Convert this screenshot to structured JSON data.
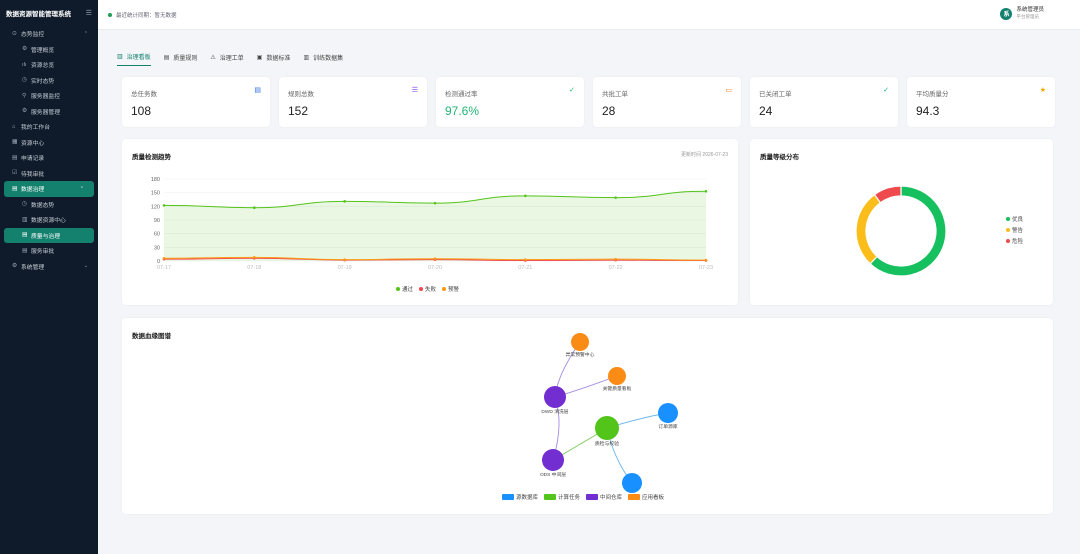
{
  "app": {
    "title": "数据资源智能管理系统"
  },
  "sidebar": {
    "items": [
      {
        "label": "态势监控",
        "icon": "monitor-icon",
        "type": "group",
        "caret": "⌃"
      },
      {
        "label": "管理概览",
        "icon": "gear-icon",
        "type": "sub"
      },
      {
        "label": "资源总览",
        "icon": "chart-icon",
        "type": "sub"
      },
      {
        "label": "实时态势",
        "icon": "clock-icon",
        "type": "sub"
      },
      {
        "label": "服务器监控",
        "icon": "key-icon",
        "type": "sub"
      },
      {
        "label": "服务器管理",
        "icon": "cog-icon",
        "type": "sub"
      },
      {
        "label": "我的工作台",
        "icon": "home-icon",
        "type": "top"
      },
      {
        "label": "资源中心",
        "icon": "grid-icon",
        "type": "top"
      },
      {
        "label": "申请记录",
        "icon": "doc-icon",
        "type": "top"
      },
      {
        "label": "待我审批",
        "icon": "check-icon",
        "type": "top"
      },
      {
        "label": "数据治理",
        "icon": "data-icon",
        "type": "group-active",
        "caret": "⌃"
      },
      {
        "label": "数据态势",
        "icon": "clock-icon",
        "type": "sub"
      },
      {
        "label": "数据资源中心",
        "icon": "db-icon",
        "type": "sub"
      },
      {
        "label": "质量与治理",
        "icon": "shield-icon",
        "type": "active"
      },
      {
        "label": "服务审批",
        "icon": "doc-icon",
        "type": "sub"
      },
      {
        "label": "系统管理",
        "icon": "gear-icon",
        "type": "group",
        "caret": "⌄"
      }
    ]
  },
  "topbar": {
    "status": "最近统计同期：暂无数据",
    "user_initial": "系",
    "user_name": "系统管理员",
    "user_role": "平台管理员"
  },
  "tabs": [
    {
      "label": "治理看板",
      "icon": "▥",
      "active": true
    },
    {
      "label": "质量规则",
      "icon": "▤",
      "active": false
    },
    {
      "label": "治理工单",
      "icon": "⚠",
      "active": false
    },
    {
      "label": "数据标准",
      "icon": "▣",
      "active": false
    },
    {
      "label": "训练数据集",
      "icon": "▥",
      "active": false
    }
  ],
  "stats": [
    {
      "label": "总任务数",
      "value": "108",
      "icon": "▤",
      "color": "#2f6fe0",
      "value_color": "#222"
    },
    {
      "label": "规则总数",
      "value": "152",
      "icon": "☰",
      "color": "#8a5cf6",
      "value_color": "#222"
    },
    {
      "label": "检测通过率",
      "value": "97.6%",
      "icon": "✓",
      "color": "#22b573",
      "value_color": "#22b573"
    },
    {
      "label": "共批工单",
      "value": "28",
      "icon": "▭",
      "color": "#f07a1a",
      "value_color": "#222"
    },
    {
      "label": "已关闭工单",
      "value": "24",
      "icon": "✓",
      "color": "#14a58a",
      "value_color": "#222"
    },
    {
      "label": "平均质量分",
      "value": "94.3",
      "icon": "★",
      "color": "#f0a800",
      "value_color": "#222"
    }
  ],
  "trend": {
    "title": "质量检测趋势",
    "updated": "更新时间 2026-07-23",
    "chart_data": {
      "type": "area",
      "x": [
        "07-17",
        "07-18",
        "07-19",
        "07-20",
        "07-21",
        "07-22",
        "07-23"
      ],
      "ylim": [
        0,
        180
      ],
      "yticks": [
        0,
        30,
        60,
        90,
        120,
        150,
        180
      ],
      "series": [
        {
          "name": "通过",
          "values": [
            122,
            117,
            131,
            127,
            143,
            139,
            153
          ],
          "color": "#52c41a"
        },
        {
          "name": "失败",
          "values": [
            4,
            6,
            2,
            3,
            1,
            2,
            1
          ],
          "color": "#f5484d"
        },
        {
          "name": "预警",
          "values": [
            6,
            8,
            3,
            5,
            3,
            4,
            2
          ],
          "color": "#fa9a14"
        }
      ]
    }
  },
  "dist": {
    "title": "质量等级分布",
    "chart_data": {
      "type": "pie",
      "categories": [
        "优良",
        "警告",
        "危险"
      ],
      "values": [
        62,
        28,
        10
      ],
      "colors": [
        "#17c05f",
        "#fbbd1a",
        "#ef4b4e"
      ]
    }
  },
  "lineage": {
    "title": "数据血缘图谱",
    "nodes": [
      {
        "label": "异常预警中心",
        "color": "#fa8c16",
        "r": 9
      },
      {
        "label": "关键质量看板",
        "color": "#fa8c16",
        "r": 9
      },
      {
        "label": "DWD 清洗层",
        "color": "#722ed1",
        "r": 11
      },
      {
        "label": "订单源库",
        "color": "#1890ff",
        "r": 10
      },
      {
        "label": "质检与校验",
        "color": "#52c41a",
        "r": 12
      },
      {
        "label": "ODS 中间层",
        "color": "#722ed1",
        "r": 11
      },
      {
        "label": "",
        "color": "#1890ff",
        "r": 10
      }
    ],
    "legend": [
      {
        "label": "源数据库",
        "color": "#1890ff"
      },
      {
        "label": "计算任务",
        "color": "#52c41a"
      },
      {
        "label": "中间仓库",
        "color": "#722ed1"
      },
      {
        "label": "应用看板",
        "color": "#fa8c16"
      }
    ]
  }
}
